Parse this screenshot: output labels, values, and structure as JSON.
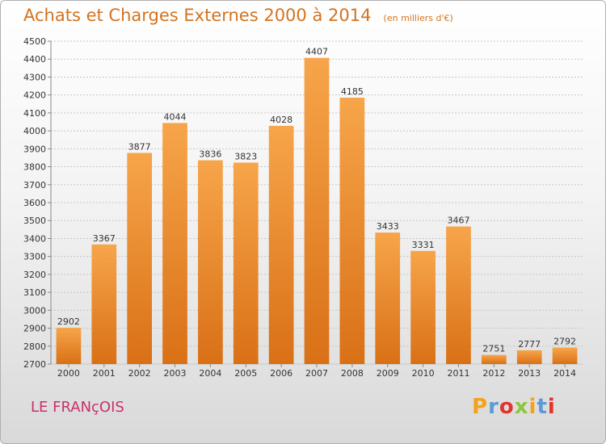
{
  "header": {
    "title": "Achats et Charges Externes 2000 à 2014",
    "subtitle": "(en milliers d'€)"
  },
  "footer": {
    "commune": "LE FRANçOIS",
    "logo_text": "Proxiti",
    "logo_colors": [
      "#f4a21a",
      "#5b9bd5",
      "#e0342c",
      "#8dc63f",
      "#f4a21a",
      "#5b9bd5",
      "#e0342c"
    ]
  },
  "colors": {
    "bar_light": "#f7a54a",
    "bar_dark": "#d97016",
    "title": "#d4731f",
    "grid": "#c8c8c8"
  },
  "chart_data": {
    "type": "bar",
    "title": "Achats et Charges Externes 2000 à 2014",
    "subtitle": "(en milliers d'€)",
    "categories": [
      "2000",
      "2001",
      "2002",
      "2003",
      "2004",
      "2005",
      "2006",
      "2007",
      "2008",
      "2009",
      "2010",
      "2011",
      "2012",
      "2013",
      "2014"
    ],
    "values": [
      2902,
      3367,
      3877,
      4044,
      3836,
      3823,
      4028,
      4407,
      4185,
      3433,
      3331,
      3467,
      2751,
      2777,
      2792
    ],
    "ylim": [
      2700,
      4500
    ],
    "ytick_step": 100,
    "grid": true,
    "xlabel": "",
    "ylabel": ""
  }
}
